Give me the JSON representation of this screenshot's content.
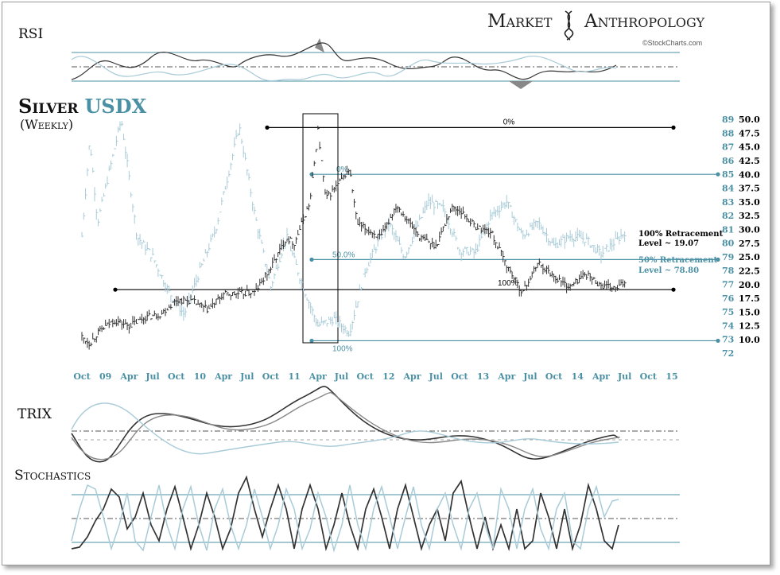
{
  "brand": {
    "left": "Market",
    "right": "Anthropology",
    "credit": "©StockCharts.com"
  },
  "panels": {
    "rsi": "RSI",
    "trix": "TRIX",
    "stochastics": "Stochastics"
  },
  "colors": {
    "silver": "#333333",
    "usdx": "#a8cbd8",
    "accent": "#4a90a4",
    "black": "#000000"
  },
  "chart_data": {
    "type": "line",
    "title": "Silver",
    "title_series": "USDX",
    "subtitle": "(Weekly)",
    "x_tick_labels": [
      "Oct",
      "09",
      "Apr",
      "Jul",
      "Oct",
      "10",
      "Apr",
      "Jul",
      "Oct",
      "11",
      "Apr",
      "Jul",
      "Oct",
      "12",
      "Apr",
      "Jul",
      "Oct",
      "13",
      "Apr",
      "Jul",
      "Oct",
      "14",
      "Apr",
      "Jul",
      "Oct",
      "15"
    ],
    "x_date_range": [
      "2008-10",
      "2015-01"
    ],
    "axes": {
      "usdx": {
        "side": "left",
        "color": "#4a90a4",
        "ticks": [
          "89",
          "88",
          "87",
          "86",
          "85",
          "84",
          "83",
          "82",
          "81",
          "80",
          "79",
          "78",
          "77",
          "76",
          "75",
          "74",
          "73",
          "72"
        ],
        "range": [
          72,
          89
        ]
      },
      "silver": {
        "side": "right",
        "color": "#000000",
        "ticks": [
          "50.0",
          "47.5",
          "45.0",
          "42.5",
          "40.0",
          "37.5",
          "35.0",
          "32.5",
          "30.0",
          "27.5",
          "25.0",
          "22.5",
          "20.0",
          "17.5",
          "15.0",
          "12.5",
          "10.0"
        ],
        "range": [
          10,
          50
        ]
      }
    },
    "series": [
      {
        "name": "Silver",
        "color": "#333333",
        "axis": "silver",
        "style": "ohlc-bars",
        "points": [
          [
            "2008-10",
            10.5
          ],
          [
            "2008-11",
            9.3
          ],
          [
            "2008-12",
            11.2
          ],
          [
            "2009-02",
            13.5
          ],
          [
            "2009-04",
            12.5
          ],
          [
            "2009-06",
            14.0
          ],
          [
            "2009-08",
            14.6
          ],
          [
            "2009-10",
            17.2
          ],
          [
            "2009-12",
            17.0
          ],
          [
            "2010-02",
            15.4
          ],
          [
            "2010-04",
            18.2
          ],
          [
            "2010-06",
            18.3
          ],
          [
            "2010-08",
            18.6
          ],
          [
            "2010-10",
            23.0
          ],
          [
            "2010-12",
            28.5
          ],
          [
            "2011-01",
            27.5
          ],
          [
            "2011-03",
            35.0
          ],
          [
            "2011-04",
            48.0
          ],
          [
            "2011-05",
            35.5
          ],
          [
            "2011-07",
            39.0
          ],
          [
            "2011-08",
            41.0
          ],
          [
            "2011-09",
            31.0
          ],
          [
            "2011-12",
            28.5
          ],
          [
            "2012-02",
            34.5
          ],
          [
            "2012-05",
            28.5
          ],
          [
            "2012-07",
            27.0
          ],
          [
            "2012-09",
            34.0
          ],
          [
            "2012-10",
            33.5
          ],
          [
            "2012-12",
            30.5
          ],
          [
            "2013-02",
            29.5
          ],
          [
            "2013-04",
            23.5
          ],
          [
            "2013-06",
            18.5
          ],
          [
            "2013-08",
            24.0
          ],
          [
            "2013-10",
            21.5
          ],
          [
            "2013-12",
            19.5
          ],
          [
            "2014-02",
            22.0
          ],
          [
            "2014-04",
            19.8
          ],
          [
            "2014-06",
            19.2
          ],
          [
            "2014-07",
            20.5
          ]
        ]
      },
      {
        "name": "USDX",
        "color": "#a8cbd8",
        "axis": "usdx",
        "style": "ohlc-bars",
        "points": [
          [
            "2008-10",
            80.5
          ],
          [
            "2008-11",
            87.5
          ],
          [
            "2008-12",
            81.5
          ],
          [
            "2009-03",
            89.0
          ],
          [
            "2009-05",
            80.5
          ],
          [
            "2009-07",
            79.0
          ],
          [
            "2009-09",
            76.5
          ],
          [
            "2009-11",
            74.8
          ],
          [
            "2010-01",
            78.0
          ],
          [
            "2010-03",
            81.0
          ],
          [
            "2010-06",
            88.5
          ],
          [
            "2010-08",
            82.0
          ],
          [
            "2010-10",
            76.8
          ],
          [
            "2010-12",
            80.5
          ],
          [
            "2011-02",
            77.0
          ],
          [
            "2011-04",
            74.0
          ],
          [
            "2011-06",
            74.5
          ],
          [
            "2011-08",
            73.5
          ],
          [
            "2011-10",
            78.0
          ],
          [
            "2011-12",
            80.5
          ],
          [
            "2012-01",
            81.5
          ],
          [
            "2012-03",
            79.0
          ],
          [
            "2012-06",
            83.0
          ],
          [
            "2012-08",
            82.5
          ],
          [
            "2012-10",
            79.5
          ],
          [
            "2012-12",
            79.3
          ],
          [
            "2013-02",
            82.0
          ],
          [
            "2013-04",
            83.0
          ],
          [
            "2013-06",
            80.5
          ],
          [
            "2013-08",
            81.5
          ],
          [
            "2013-10",
            79.8
          ],
          [
            "2013-12",
            80.5
          ],
          [
            "2014-02",
            80.3
          ],
          [
            "2014-04",
            79.2
          ],
          [
            "2014-06",
            80.2
          ],
          [
            "2014-07",
            80.8
          ]
        ]
      }
    ],
    "annotations": [
      {
        "text": "0%",
        "kind": "range-line",
        "series": "Silver"
      },
      {
        "text": "0%",
        "kind": "level",
        "series": "USDX",
        "level": 85
      },
      {
        "text": "50.0%",
        "kind": "level",
        "series": "USDX",
        "level": 78.8
      },
      {
        "text": "100%",
        "kind": "level",
        "series": "USDX",
        "level": 72.9
      },
      {
        "text": "100%",
        "kind": "level",
        "series": "Silver",
        "level": 19.07
      }
    ],
    "callouts": {
      "silver": [
        "100% Retracement",
        "Level ~ 19.07"
      ],
      "usdx": [
        "50% Retracement",
        "Level ~ 78.80"
      ]
    }
  }
}
